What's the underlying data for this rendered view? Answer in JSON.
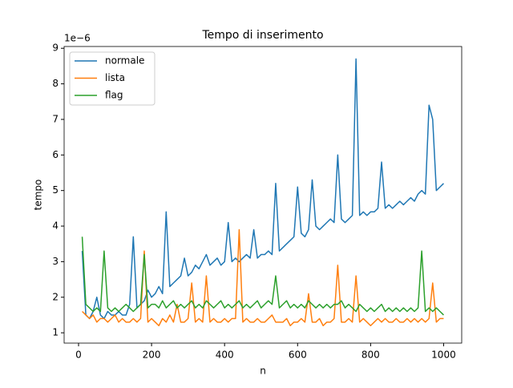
{
  "chart_data": {
    "type": "line",
    "title": "Tempo di inserimento",
    "x_label": "n",
    "y_label": "tempo",
    "y_offset_label": "1e−6",
    "x": [
      10,
      20,
      30,
      40,
      50,
      60,
      70,
      80,
      90,
      100,
      110,
      120,
      130,
      140,
      150,
      160,
      170,
      180,
      190,
      200,
      210,
      220,
      230,
      240,
      250,
      260,
      270,
      280,
      290,
      300,
      310,
      320,
      330,
      340,
      350,
      360,
      370,
      380,
      390,
      400,
      410,
      420,
      430,
      440,
      450,
      460,
      470,
      480,
      490,
      500,
      510,
      520,
      530,
      540,
      550,
      560,
      570,
      580,
      590,
      600,
      610,
      620,
      630,
      640,
      650,
      660,
      670,
      680,
      690,
      700,
      710,
      720,
      730,
      740,
      750,
      760,
      770,
      780,
      790,
      800,
      810,
      820,
      830,
      840,
      850,
      860,
      870,
      880,
      890,
      900,
      910,
      920,
      930,
      940,
      950,
      960,
      970,
      980,
      990,
      1000
    ],
    "series": [
      {
        "name": "normale",
        "color": "#1f77b4",
        "values": [
          3.3,
          1.5,
          1.4,
          1.6,
          2.0,
          1.5,
          1.4,
          1.6,
          1.5,
          1.5,
          1.6,
          1.5,
          1.5,
          1.8,
          3.7,
          1.7,
          1.8,
          1.9,
          2.2,
          2.0,
          2.1,
          2.3,
          2.1,
          4.4,
          2.3,
          2.4,
          2.5,
          2.6,
          3.1,
          2.6,
          2.7,
          2.9,
          2.8,
          3.0,
          3.2,
          2.9,
          3.0,
          3.1,
          2.9,
          3.0,
          4.1,
          3.0,
          3.1,
          3.0,
          3.1,
          3.2,
          3.1,
          3.9,
          3.1,
          3.2,
          3.2,
          3.3,
          3.2,
          5.2,
          3.3,
          3.4,
          3.5,
          3.6,
          3.7,
          5.1,
          3.8,
          3.7,
          3.9,
          5.3,
          4.0,
          3.9,
          4.0,
          4.1,
          4.2,
          4.1,
          6.0,
          4.2,
          4.1,
          4.2,
          4.3,
          8.7,
          4.3,
          4.4,
          4.3,
          4.4,
          4.4,
          4.5,
          5.8,
          4.5,
          4.6,
          4.5,
          4.6,
          4.7,
          4.6,
          4.7,
          4.8,
          4.7,
          4.9,
          5.0,
          4.9,
          7.4,
          7.0,
          5.0,
          5.1,
          5.2
        ]
      },
      {
        "name": "lista",
        "color": "#ff7f0e",
        "values": [
          1.6,
          1.5,
          1.4,
          1.5,
          1.3,
          1.4,
          1.4,
          1.3,
          1.4,
          1.5,
          1.3,
          1.4,
          1.3,
          1.3,
          1.4,
          1.3,
          1.4,
          3.3,
          1.3,
          1.4,
          1.3,
          1.2,
          1.4,
          1.3,
          1.5,
          1.3,
          1.8,
          1.3,
          1.3,
          1.4,
          2.4,
          1.3,
          1.4,
          1.3,
          2.6,
          1.3,
          1.4,
          1.3,
          1.3,
          1.4,
          1.3,
          1.4,
          1.4,
          3.9,
          1.3,
          1.4,
          1.3,
          1.3,
          1.4,
          1.3,
          1.3,
          1.4,
          1.5,
          1.3,
          1.3,
          1.3,
          1.4,
          1.2,
          1.3,
          1.3,
          1.4,
          1.3,
          2.1,
          1.3,
          1.3,
          1.4,
          1.2,
          1.3,
          1.3,
          1.4,
          2.9,
          1.3,
          1.3,
          1.4,
          1.3,
          2.6,
          1.3,
          1.4,
          1.3,
          1.2,
          1.3,
          1.4,
          1.3,
          1.4,
          1.3,
          1.3,
          1.4,
          1.3,
          1.3,
          1.4,
          1.3,
          1.4,
          1.3,
          1.4,
          1.3,
          1.4,
          2.4,
          1.3,
          1.4,
          1.4
        ]
      },
      {
        "name": "flag",
        "color": "#2ca02c",
        "values": [
          3.7,
          1.8,
          1.7,
          1.6,
          1.7,
          1.6,
          3.3,
          1.7,
          1.6,
          1.7,
          1.6,
          1.7,
          1.8,
          1.7,
          1.6,
          1.7,
          1.8,
          3.2,
          1.7,
          1.8,
          1.8,
          1.7,
          1.9,
          1.7,
          1.8,
          1.9,
          1.7,
          1.8,
          1.7,
          1.8,
          1.9,
          1.7,
          1.8,
          1.7,
          1.9,
          1.8,
          1.7,
          1.8,
          1.9,
          1.7,
          1.8,
          1.7,
          1.8,
          1.9,
          1.7,
          1.8,
          1.7,
          1.8,
          1.9,
          1.7,
          1.8,
          1.9,
          1.8,
          2.6,
          1.7,
          1.8,
          1.9,
          1.7,
          1.8,
          1.7,
          1.8,
          1.7,
          1.9,
          1.8,
          1.7,
          1.8,
          1.7,
          1.8,
          1.7,
          1.8,
          1.8,
          1.9,
          1.7,
          1.8,
          1.7,
          1.6,
          1.8,
          1.7,
          1.6,
          1.7,
          1.6,
          1.7,
          1.8,
          1.6,
          1.7,
          1.6,
          1.7,
          1.6,
          1.7,
          1.6,
          1.7,
          1.6,
          1.7,
          3.3,
          1.6,
          1.7,
          1.6,
          1.7,
          1.6,
          1.5
        ]
      }
    ],
    "xlim": [
      -39.5,
      1049.5
    ],
    "ylim": [
      0.71,
      9.05
    ],
    "xticks": [
      0,
      200,
      400,
      600,
      800,
      1000
    ],
    "yticks": [
      1,
      2,
      3,
      4,
      5,
      6,
      7,
      8,
      9
    ],
    "legend": "upper left"
  }
}
